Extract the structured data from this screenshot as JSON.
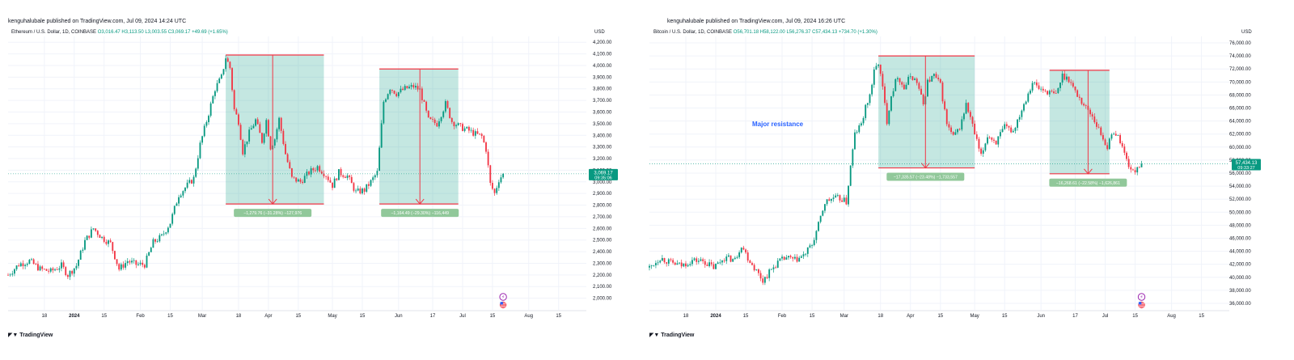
{
  "chart_data": [
    {
      "type": "candlestick",
      "publisher": "kenguhalubale published on TradingView.com, Jul 09, 2024 14:24 UTC",
      "symbol_line": "Ethereum / U.S. Dollar, 1D, COINBASE",
      "ohlc": {
        "o": "O3,016.47",
        "h": "H3,113.50",
        "l": "L3,003.55",
        "c": "C3,069.17",
        "chg": "+49.69 (+1.65%)"
      },
      "currency": "USD",
      "ylim": [
        1900,
        4250
      ],
      "yticks": [
        2000,
        2100,
        2200,
        2300,
        2400,
        2500,
        2600,
        2700,
        2800,
        2900,
        3000,
        3100,
        3200,
        3300,
        3400,
        3500,
        3600,
        3700,
        3800,
        3900,
        4000,
        4100,
        4200
      ],
      "ytick_labels": [
        "2,000.00",
        "2,100.00",
        "2,200.00",
        "2,300.00",
        "2,400.00",
        "2,500.00",
        "2,600.00",
        "2,700.00",
        "2,800.00",
        "2,900.00",
        "3,000.00",
        "3,100.00",
        "3,200.00",
        "3,300.00",
        "3,400.00",
        "3,500.00",
        "3,600.00",
        "3,700.00",
        "3,800.00",
        "3,900.00",
        "4,000.00",
        "4,100.00",
        "4,200.00"
      ],
      "xticks": [
        {
          "label": "18",
          "day": 17
        },
        {
          "label": "2024",
          "day": 31,
          "bold": true
        },
        {
          "label": "15",
          "day": 45
        },
        {
          "label": "Feb",
          "day": 62
        },
        {
          "label": "15",
          "day": 76
        },
        {
          "label": "Mar",
          "day": 91
        },
        {
          "label": "18",
          "day": 108
        },
        {
          "label": "Apr",
          "day": 122
        },
        {
          "label": "15",
          "day": 136
        },
        {
          "label": "May",
          "day": 152
        },
        {
          "label": "15",
          "day": 166
        },
        {
          "label": "Jun",
          "day": 183
        },
        {
          "label": "17",
          "day": 199
        },
        {
          "label": "Jul",
          "day": 213
        },
        {
          "label": "15",
          "day": 227
        },
        {
          "label": "Aug",
          "day": 244
        },
        {
          "label": "15",
          "day": 258
        }
      ],
      "day_range": [
        0,
        271
      ],
      "last_price": "3,069.17",
      "countdown": "09:35:06",
      "waypoints": [
        [
          0,
          2200
        ],
        [
          5,
          2290
        ],
        [
          10,
          2320
        ],
        [
          15,
          2250
        ],
        [
          20,
          2230
        ],
        [
          25,
          2280
        ],
        [
          28,
          2200
        ],
        [
          32,
          2280
        ],
        [
          36,
          2490
        ],
        [
          40,
          2600
        ],
        [
          44,
          2520
        ],
        [
          48,
          2470
        ],
        [
          52,
          2250
        ],
        [
          56,
          2320
        ],
        [
          60,
          2290
        ],
        [
          64,
          2290
        ],
        [
          68,
          2480
        ],
        [
          72,
          2530
        ],
        [
          76,
          2650
        ],
        [
          80,
          2890
        ],
        [
          84,
          2970
        ],
        [
          87,
          3030
        ],
        [
          90,
          3320
        ],
        [
          94,
          3590
        ],
        [
          97,
          3800
        ],
        [
          100,
          3900
        ],
        [
          102,
          4070
        ],
        [
          104,
          3980
        ],
        [
          106,
          3620
        ],
        [
          108,
          3520
        ],
        [
          110,
          3260
        ],
        [
          113,
          3420
        ],
        [
          116,
          3530
        ],
        [
          119,
          3350
        ],
        [
          121,
          3530
        ],
        [
          123,
          3300
        ],
        [
          125,
          3370
        ],
        [
          127,
          3540
        ],
        [
          130,
          3240
        ],
        [
          133,
          3030
        ],
        [
          137,
          3000
        ],
        [
          141,
          3080
        ],
        [
          145,
          3130
        ],
        [
          149,
          3060
        ],
        [
          152,
          2970
        ],
        [
          155,
          3080
        ],
        [
          159,
          3050
        ],
        [
          163,
          2910
        ],
        [
          167,
          2930
        ],
        [
          170,
          3000
        ],
        [
          173,
          3080
        ],
        [
          176,
          3690
        ],
        [
          179,
          3810
        ],
        [
          182,
          3760
        ],
        [
          186,
          3800
        ],
        [
          190,
          3820
        ],
        [
          193,
          3790
        ],
        [
          197,
          3530
        ],
        [
          201,
          3500
        ],
        [
          205,
          3670
        ],
        [
          208,
          3520
        ],
        [
          212,
          3470
        ],
        [
          216,
          3440
        ],
        [
          219,
          3410
        ],
        [
          222,
          3390
        ],
        [
          224,
          3280
        ],
        [
          226,
          2980
        ],
        [
          228,
          2900
        ],
        [
          230,
          3020
        ],
        [
          232,
          3069
        ]
      ],
      "boxes": [
        {
          "day1": 102,
          "day2": 148,
          "top": 4090,
          "bottom": 2810,
          "arrow_day": 124,
          "label": "−1,279.76 (−31.28%) −127,976"
        },
        {
          "day1": 174,
          "day2": 211,
          "top": 3970,
          "bottom": 2810,
          "arrow_day": 193,
          "label": "−1,164.49 (−29.30%) −116,449"
        }
      ]
    },
    {
      "type": "candlestick",
      "publisher": "kenguhalubale published on TradingView.com, Jul 09, 2024 16:26 UTC",
      "symbol_line": "Bitcoin / U.S. Dollar, 1D, COINBASE",
      "ohlc": {
        "o": "O56,701.18",
        "h": "H58,122.00",
        "l": "L56,276.37",
        "c": "C57,434.13",
        "chg": "+734.70 (+1.30%)"
      },
      "currency": "USD",
      "ylim": [
        35000,
        77000
      ],
      "yticks": [
        36000,
        38000,
        40000,
        42000,
        44000,
        46000,
        48000,
        50000,
        52000,
        54000,
        56000,
        58000,
        60000,
        62000,
        64000,
        66000,
        68000,
        70000,
        72000,
        74000,
        76000
      ],
      "ytick_labels": [
        "36,000.00",
        "38,000.00",
        "40,000.00",
        "42,000.00",
        "44,000.00",
        "46,000.00",
        "48,000.00",
        "50,000.00",
        "52,000.00",
        "54,000.00",
        "56,000.00",
        "58,000.00",
        "60,000.00",
        "62,000.00",
        "64,000.00",
        "66,000.00",
        "68,000.00",
        "70,000.00",
        "72,000.00",
        "74,000.00",
        "76,000.00"
      ],
      "xticks": [
        {
          "label": "18",
          "day": 17
        },
        {
          "label": "2024",
          "day": 31,
          "bold": true
        },
        {
          "label": "15",
          "day": 45
        },
        {
          "label": "Feb",
          "day": 62
        },
        {
          "label": "15",
          "day": 76
        },
        {
          "label": "Mar",
          "day": 91
        },
        {
          "label": "18",
          "day": 108
        },
        {
          "label": "Apr",
          "day": 122
        },
        {
          "label": "15",
          "day": 136
        },
        {
          "label": "May",
          "day": 152
        },
        {
          "label": "15",
          "day": 166
        },
        {
          "label": "Jun",
          "day": 183
        },
        {
          "label": "17",
          "day": 199
        },
        {
          "label": "Jul",
          "day": 213
        },
        {
          "label": "15",
          "day": 227
        },
        {
          "label": "Aug",
          "day": 244
        },
        {
          "label": "15",
          "day": 258
        }
      ],
      "day_range": [
        0,
        271
      ],
      "last_price": "57,434.13",
      "countdown": "09:33:27",
      "waypoints": [
        [
          0,
          41500
        ],
        [
          5,
          43000
        ],
        [
          10,
          42200
        ],
        [
          15,
          41800
        ],
        [
          20,
          42600
        ],
        [
          25,
          42500
        ],
        [
          30,
          41500
        ],
        [
          35,
          43000
        ],
        [
          40,
          42700
        ],
        [
          43,
          45000
        ],
        [
          46,
          43000
        ],
        [
          50,
          41000
        ],
        [
          53,
          39500
        ],
        [
          56,
          40800
        ],
        [
          60,
          42300
        ],
        [
          64,
          43000
        ],
        [
          68,
          42600
        ],
        [
          72,
          43300
        ],
        [
          76,
          45000
        ],
        [
          79,
          48000
        ],
        [
          82,
          51500
        ],
        [
          86,
          52200
        ],
        [
          90,
          52000
        ],
        [
          92,
          51500
        ],
        [
          94,
          57000
        ],
        [
          96,
          62000
        ],
        [
          99,
          63500
        ],
        [
          101,
          66000
        ],
        [
          103,
          68000
        ],
        [
          105,
          71500
        ],
        [
          107,
          73000
        ],
        [
          109,
          69000
        ],
        [
          111,
          64000
        ],
        [
          113,
          68000
        ],
        [
          116,
          71000
        ],
        [
          119,
          69000
        ],
        [
          122,
          71000
        ],
        [
          125,
          70000
        ],
        [
          128,
          66500
        ],
        [
          130,
          70000
        ],
        [
          133,
          71000
        ],
        [
          136,
          69500
        ],
        [
          139,
          63500
        ],
        [
          142,
          61500
        ],
        [
          145,
          63000
        ],
        [
          148,
          66500
        ],
        [
          150,
          64500
        ],
        [
          152,
          62000
        ],
        [
          155,
          58500
        ],
        [
          158,
          61800
        ],
        [
          162,
          60800
        ],
        [
          166,
          63000
        ],
        [
          170,
          62500
        ],
        [
          173,
          65000
        ],
        [
          176,
          67500
        ],
        [
          179,
          70000
        ],
        [
          182,
          69000
        ],
        [
          186,
          68500
        ],
        [
          190,
          68000
        ],
        [
          193,
          71000
        ],
        [
          196,
          70500
        ],
        [
          199,
          68500
        ],
        [
          203,
          66500
        ],
        [
          207,
          64800
        ],
        [
          211,
          62000
        ],
        [
          214,
          60000
        ],
        [
          217,
          62500
        ],
        [
          220,
          61000
        ],
        [
          223,
          58000
        ],
        [
          226,
          56000
        ],
        [
          228,
          57000
        ],
        [
          230,
          57434
        ]
      ],
      "boxes": [
        {
          "day1": 107,
          "day2": 152,
          "top": 74000,
          "bottom": 56800,
          "arrow_day": 129,
          "label": "−17,335.57 (−23.48%) −1,733,557"
        },
        {
          "day1": 187,
          "day2": 215,
          "top": 71800,
          "bottom": 55900,
          "arrow_day": 205,
          "label": "−16,268.61 (−22.58%) −1,626,861"
        }
      ],
      "annotation": {
        "text": "Major resistance",
        "day": 48,
        "price": 63200
      }
    }
  ],
  "footer": {
    "logo_text": "TradingView"
  }
}
